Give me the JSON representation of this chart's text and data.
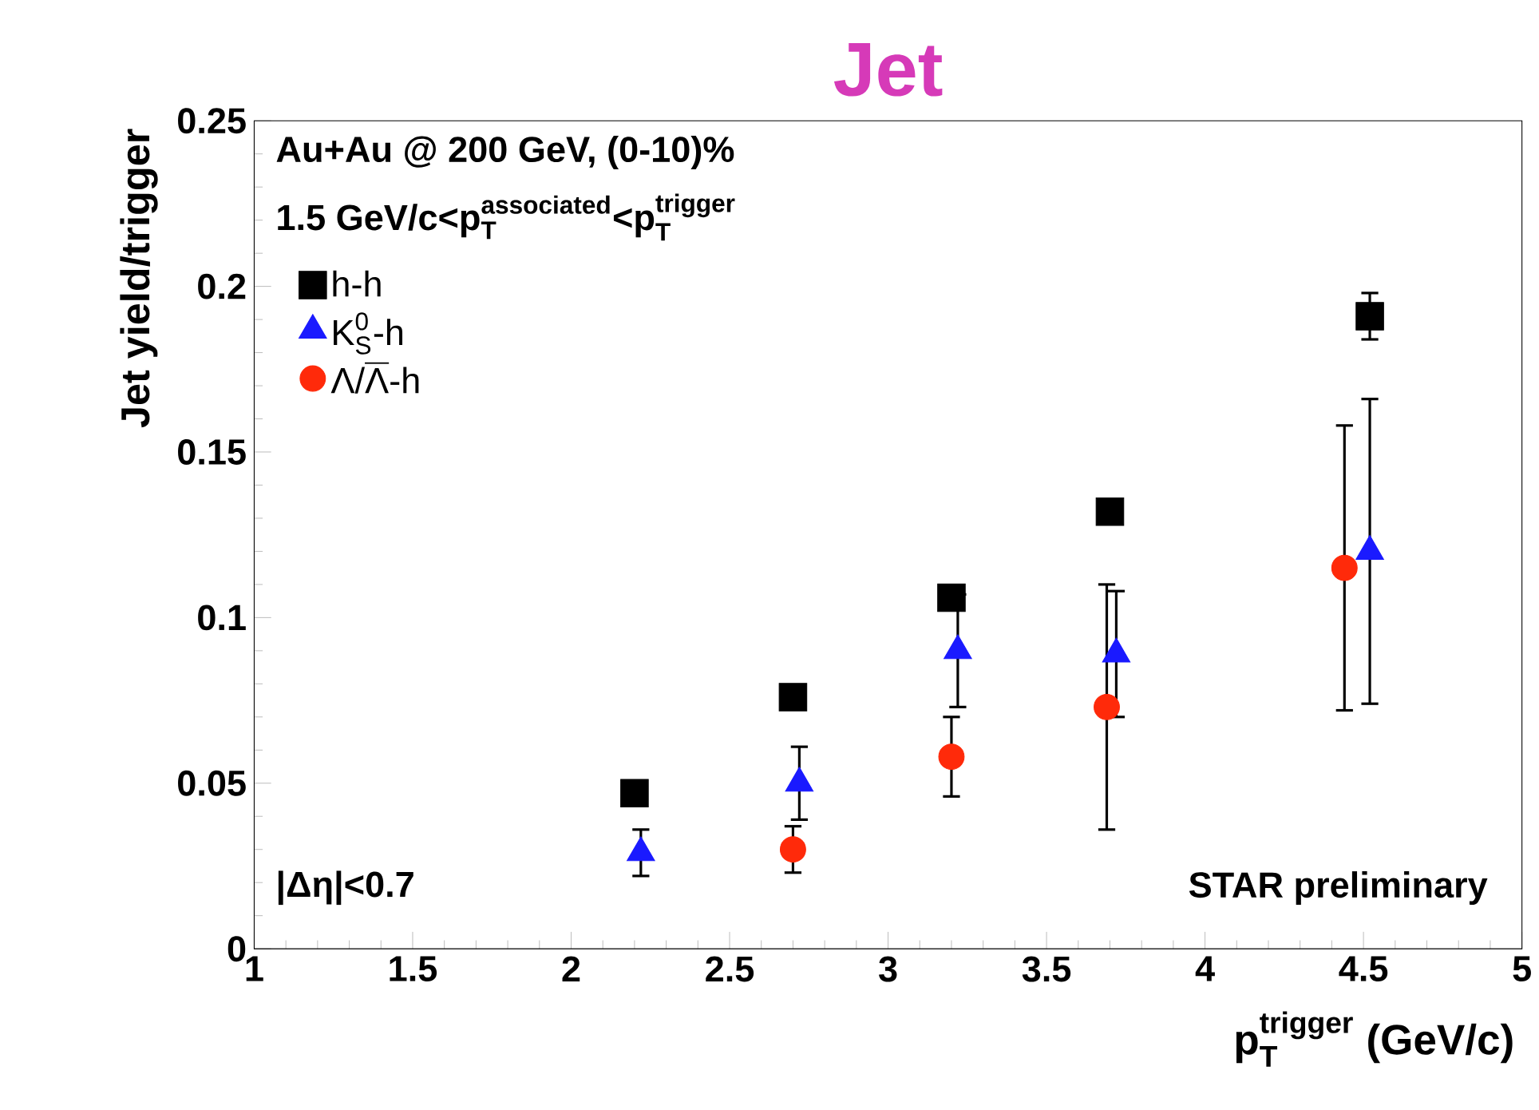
{
  "chart_data": {
    "type": "scatter",
    "title": "Jet",
    "xlabel": "\\text{p}_{\\text{T}}^{\\text{trigger}}\\text{ (GeV/c)}",
    "ylabel": "Jet yield/trigger",
    "xlim": [
      1,
      5
    ],
    "ylim": [
      0,
      0.25
    ],
    "xticks": [
      1,
      1.5,
      2,
      2.5,
      3,
      3.5,
      4,
      4.5,
      5
    ],
    "yticks": [
      0,
      0.05,
      0.1,
      0.15,
      0.2,
      0.25
    ],
    "grid": false,
    "legend": "top left",
    "annotations": [
      "Au+Au @ 200 GeV, (0-10)%",
      "\\text{1.5 GeV/c<p}_{\\text{T}}^{\\text{associated}}\\text{<p}_{\\text{T}}^{\\text{trigger}}",
      "|Δη|<0.7",
      "STAR preliminary"
    ],
    "series": [
      {
        "name": "h-h",
        "color": "#000000",
        "marker": "square",
        "x": [
          2.2,
          2.7,
          3.2,
          3.7,
          4.52
        ],
        "values": [
          0.047,
          0.076,
          0.106,
          0.132,
          0.191
        ],
        "errors": [
          null,
          null,
          null,
          null,
          0.007
        ]
      },
      {
        "name": "\\text{K}_{\\text{S}}^{\\text{0}}\\text{-h}",
        "color": "#1a1aff",
        "marker": "triangle",
        "x": [
          2.22,
          2.72,
          3.22,
          3.72,
          4.52
        ],
        "values": [
          0.029,
          0.05,
          0.09,
          0.089,
          0.12
        ],
        "errors": [
          0.007,
          0.011,
          0.017,
          0.019,
          0.046
        ]
      },
      {
        "name": "\\text{Λ/}\\overline{\\text{Λ}}\\text{-h}",
        "color": "#ff2a0a",
        "marker": "circle",
        "x": [
          2.7,
          3.2,
          3.69,
          4.44
        ],
        "values": [
          0.03,
          0.058,
          0.073,
          0.115
        ],
        "errors": [
          0.007,
          0.012,
          0.037,
          0.043
        ]
      }
    ]
  }
}
